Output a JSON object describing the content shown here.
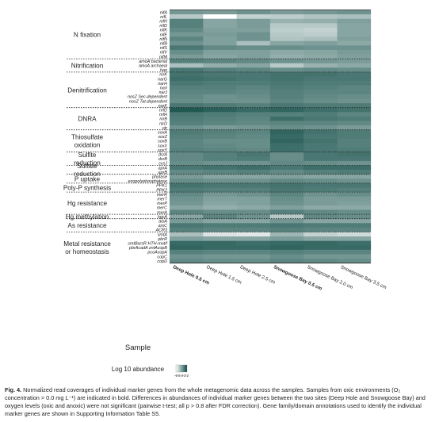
{
  "chart_data": {
    "type": "heatmap",
    "xlabel": "Sample",
    "legend_label": "Log 10 abundance",
    "colorbar_ticks": [
      "-6",
      "-5",
      "-4",
      "-3",
      "-2"
    ],
    "colorbar_range": [
      -6,
      -2
    ],
    "colors": {
      "low": "#ffffff",
      "high": "#0e4a44"
    },
    "samples": [
      {
        "label": "Deep Hole 0.5 cm",
        "oxic": true
      },
      {
        "label": "Deep Hole 1.5 cm",
        "oxic": false
      },
      {
        "label": "Deep Hole 2.5 cm",
        "oxic": false
      },
      {
        "label": "Snowgoose Bay 0.5 cm",
        "oxic": true
      },
      {
        "label": "Snowgoose Bay 2.0 cm",
        "oxic": false
      },
      {
        "label": "Snowgoose Bay 3.5 cm",
        "oxic": false
      }
    ],
    "groups": [
      {
        "name": "N fixation",
        "genes": [
          {
            "gene": "nifA",
            "values": [
              -3.7,
              -3.8,
              -3.6,
              -3.8,
              -3.7,
              -3.6
            ]
          },
          {
            "gene": "nifL",
            "values": [
              -4.8,
              -6.0,
              -5.0,
              -4.9,
              -4.7,
              -4.6
            ]
          },
          {
            "gene": "nifH",
            "values": [
              -3.2,
              -4.0,
              -3.8,
              -4.3,
              -4.2,
              -3.9
            ]
          },
          {
            "gene": "nifD",
            "values": [
              -3.2,
              -4.0,
              -3.8,
              -4.8,
              -4.8,
              -4.0
            ]
          },
          {
            "gene": "nifK",
            "values": [
              -3.4,
              -3.9,
              -3.9,
              -4.9,
              -5.0,
              -4.0
            ]
          },
          {
            "gene": "nifE",
            "values": [
              -3.7,
              -3.8,
              -3.6,
              -4.8,
              -4.9,
              -4.0
            ]
          },
          {
            "gene": "nifN",
            "values": [
              -3.3,
              -3.9,
              -3.6,
              -4.7,
              -4.6,
              -3.9
            ]
          },
          {
            "gene": "nifB",
            "values": [
              -3.6,
              -3.9,
              -4.6,
              -4.0,
              -3.9,
              -4.1
            ]
          },
          {
            "gene": "nifS",
            "values": [
              -3.0,
              -3.4,
              -3.5,
              -3.5,
              -3.6,
              -3.6
            ]
          },
          {
            "gene": "nifV",
            "values": [
              -3.5,
              -3.9,
              -3.9,
              -4.1,
              -4.0,
              -3.8
            ]
          },
          {
            "gene": "nifM",
            "values": [
              -3.8,
              -4.0,
              -3.9,
              -4.2,
              -4.1,
              -3.9
            ]
          }
        ]
      },
      {
        "name": "Nitrification",
        "genes": [
          {
            "gene": "amoA bacterial",
            "values": [
              -3.2,
              -3.3,
              -3.4,
              -3.6,
              -3.7,
              -3.8
            ]
          },
          {
            "gene": "amoA archaeal",
            "values": [
              -4.6,
              -4.2,
              -4.0,
              -4.8,
              -4.3,
              -4.1
            ]
          },
          {
            "gene": "hao",
            "values": [
              -3.0,
              -3.2,
              -3.3,
              -3.5,
              -3.4,
              -3.5
            ]
          }
        ]
      },
      {
        "name": "Denitrification",
        "genes": [
          {
            "gene": "nirK",
            "values": [
              -2.9,
              -3.0,
              -3.0,
              -2.9,
              -2.9,
              -3.0
            ]
          },
          {
            "gene": "narG",
            "values": [
              -2.8,
              -2.9,
              -3.0,
              -2.9,
              -3.0,
              -3.0
            ]
          },
          {
            "gene": "narH",
            "values": [
              -3.0,
              -3.1,
              -3.1,
              -3.0,
              -3.1,
              -3.1
            ]
          },
          {
            "gene": "narI",
            "values": [
              -3.2,
              -3.2,
              -3.3,
              -3.1,
              -3.2,
              -3.3
            ]
          },
          {
            "gene": "narJ",
            "values": [
              -3.3,
              -3.3,
              -3.4,
              -3.2,
              -3.3,
              -3.3
            ]
          },
          {
            "gene": "nosZ Sec-dependent",
            "values": [
              -3.4,
              -3.6,
              -3.5,
              -3.2,
              -3.4,
              -3.5
            ]
          },
          {
            "gene": "nosZ Tat-dependent",
            "values": [
              -3.5,
              -3.6,
              -3.6,
              -3.3,
              -3.5,
              -3.6
            ]
          },
          {
            "gene": "narK",
            "values": [
              -3.0,
              -3.1,
              -3.2,
              -3.0,
              -3.1,
              -3.1
            ]
          }
        ]
      },
      {
        "name": "DNRA",
        "genes": [
          {
            "gene": "nrfD",
            "values": [
              -2.3,
              -2.5,
              -2.7,
              -2.6,
              -2.8,
              -2.9
            ]
          },
          {
            "gene": "nrfH",
            "values": [
              -3.0,
              -3.1,
              -3.2,
              -3.2,
              -3.1,
              -3.3
            ]
          },
          {
            "gene": "nirB",
            "values": [
              -3.1,
              -3.2,
              -3.3,
              -2.8,
              -3.0,
              -3.1
            ]
          },
          {
            "gene": "nirD",
            "values": [
              -3.2,
              -3.3,
              -3.4,
              -3.3,
              -3.3,
              -3.4
            ]
          },
          {
            "gene": "otr",
            "values": [
              -3.6,
              -3.8,
              -3.7,
              -3.5,
              -3.6,
              -3.8
            ]
          }
        ]
      },
      {
        "name": "Thiosulfate oxidation",
        "genes": [
          {
            "gene": "soxA",
            "values": [
              -3.1,
              -3.2,
              -3.3,
              -2.6,
              -2.9,
              -3.1
            ]
          },
          {
            "gene": "soxZ",
            "values": [
              -3.2,
              -3.3,
              -3.4,
              -2.7,
              -3.0,
              -3.1
            ]
          },
          {
            "gene": "soxB",
            "values": [
              -3.3,
              -3.5,
              -3.5,
              -2.6,
              -2.9,
              -3.2
            ]
          },
          {
            "gene": "soxX",
            "values": [
              -3.3,
              -3.4,
              -3.5,
              -2.8,
              -3.0,
              -3.2
            ]
          },
          {
            "gene": "soxY",
            "values": [
              -3.2,
              -3.3,
              -3.4,
              -2.8,
              -3.0,
              -3.1
            ]
          }
        ]
      },
      {
        "name": "Sulfite reduction",
        "genes": [
          {
            "gene": "dsrA",
            "values": [
              -3.4,
              -3.2,
              -3.0,
              -3.5,
              -3.0,
              -2.9
            ]
          },
          {
            "gene": "dsrB",
            "values": [
              -3.4,
              -3.2,
              -3.1,
              -3.5,
              -3.0,
              -3.0
            ]
          },
          {
            "gene": "cysJ",
            "values": [
              -3.5,
              -3.6,
              -3.6,
              -3.4,
              -3.5,
              -3.6
            ]
          }
        ]
      },
      {
        "name": "Sulfate reduction",
        "genes": [
          {
            "gene": "aprA",
            "values": [
              -3.0,
              -2.9,
              -2.8,
              -3.0,
              -2.8,
              -2.8
            ]
          },
          {
            "gene": "aprB",
            "values": [
              -3.4,
              -3.3,
              -3.2,
              -3.4,
              -3.2,
              -3.1
            ]
          }
        ]
      },
      {
        "name": "P uptake",
        "genes": [
          {
            "gene": "phytase",
            "values": [
              -3.8,
              -4.0,
              -4.0,
              -3.9,
              -4.0,
              -4.0
            ]
          },
          {
            "gene": "exopolyphosphatase",
            "values": [
              -3.5,
              -3.6,
              -3.6,
              -3.4,
              -3.5,
              -3.6
            ]
          }
        ]
      },
      {
        "name": "Poly-P synthesis",
        "genes": [
          {
            "gene": "PPK1",
            "values": [
              -2.9,
              -3.0,
              -3.0,
              -2.9,
              -3.0,
              -3.0
            ]
          },
          {
            "gene": "PPK2",
            "values": [
              -3.1,
              -3.2,
              -3.2,
              -3.0,
              -3.1,
              -3.2
            ]
          }
        ]
      },
      {
        "name": "Hg resistance",
        "genes": [
          {
            "gene": "merR",
            "values": [
              -3.4,
              -3.7,
              -3.6,
              -3.3,
              -3.6,
              -3.5
            ]
          },
          {
            "gene": "merT",
            "values": [
              -3.6,
              -3.9,
              -3.9,
              -3.5,
              -3.8,
              -3.8
            ]
          },
          {
            "gene": "merP",
            "values": [
              -3.7,
              -4.0,
              -3.9,
              -3.6,
              -3.8,
              -3.9
            ]
          },
          {
            "gene": "merC",
            "values": [
              -4.0,
              -4.2,
              -4.1,
              -3.9,
              -4.1,
              -4.1
            ]
          },
          {
            "gene": "merA",
            "values": [
              -3.3,
              -3.5,
              -3.5,
              -3.2,
              -3.4,
              -3.5
            ]
          }
        ]
      },
      {
        "name": "Hg methylation",
        "genes": [
          {
            "gene": "hgcA",
            "values": [
              -4.0,
              -3.3,
              -3.6,
              -4.8,
              -3.4,
              -3.5
            ]
          }
        ]
      },
      {
        "name": "As resistance",
        "genes": [
          {
            "gene": "aioA",
            "values": [
              -3.8,
              -4.0,
              -4.0,
              -3.7,
              -4.0,
              -4.0
            ]
          },
          {
            "gene": "arsC",
            "values": [
              -3.0,
              -3.1,
              -3.1,
              -3.0,
              -3.1,
              -3.1
            ]
          },
          {
            "gene": "ACR3",
            "values": [
              -3.2,
              -3.3,
              -3.3,
              -3.2,
              -3.3,
              -3.3
            ]
          }
        ]
      },
      {
        "name": "Metal resistance or homeostasis",
        "genes": [
          {
            "gene": "smtA",
            "values": [
              -4.6,
              -5.4,
              -5.5,
              -4.4,
              -5.0,
              -5.2
            ]
          },
          {
            "gene": "pbrR",
            "values": [
              -3.9,
              -4.0,
              -4.0,
              -3.8,
              -4.0,
              -4.0
            ]
          },
          {
            "gene": "smtBarsR HTH-motif",
            "values": [
              -2.7,
              -2.7,
              -2.8,
              -2.7,
              -2.7,
              -2.8
            ]
          },
          {
            "gene": "pbrAcadA zntAcopB",
            "values": [
              -2.6,
              -2.7,
              -2.7,
              -2.6,
              -2.7,
              -2.7
            ]
          },
          {
            "gene": "pcoAcopA",
            "values": [
              -3.2,
              -3.3,
              -3.3,
              -3.2,
              -3.3,
              -3.3
            ]
          },
          {
            "gene": "copC",
            "values": [
              -3.6,
              -3.7,
              -3.7,
              -3.5,
              -3.7,
              -3.7
            ]
          },
          {
            "gene": "copD",
            "values": [
              -3.4,
              -3.5,
              -3.5,
              -3.3,
              -3.4,
              -3.5
            ]
          }
        ]
      }
    ]
  },
  "caption": {
    "label": "Fig. 4.",
    "text": "Normalized read coverages of individual marker genes from the whole metagenomic data across the samples. Samples from oxic environments (O₂ concentration > 0.0 mg L⁻¹) are indicated in bold. Differences in abundances of individual marker genes between the two sites (Deep Hole and Snowgoose Bay) and oxygen levels (oxic and anoxic) were not significant (pairwise t-test; all p > 0.8 after FDR correction). Gene family/domain annotations used to identify the individual marker genes are shown in Supporting Information Table S5."
  }
}
